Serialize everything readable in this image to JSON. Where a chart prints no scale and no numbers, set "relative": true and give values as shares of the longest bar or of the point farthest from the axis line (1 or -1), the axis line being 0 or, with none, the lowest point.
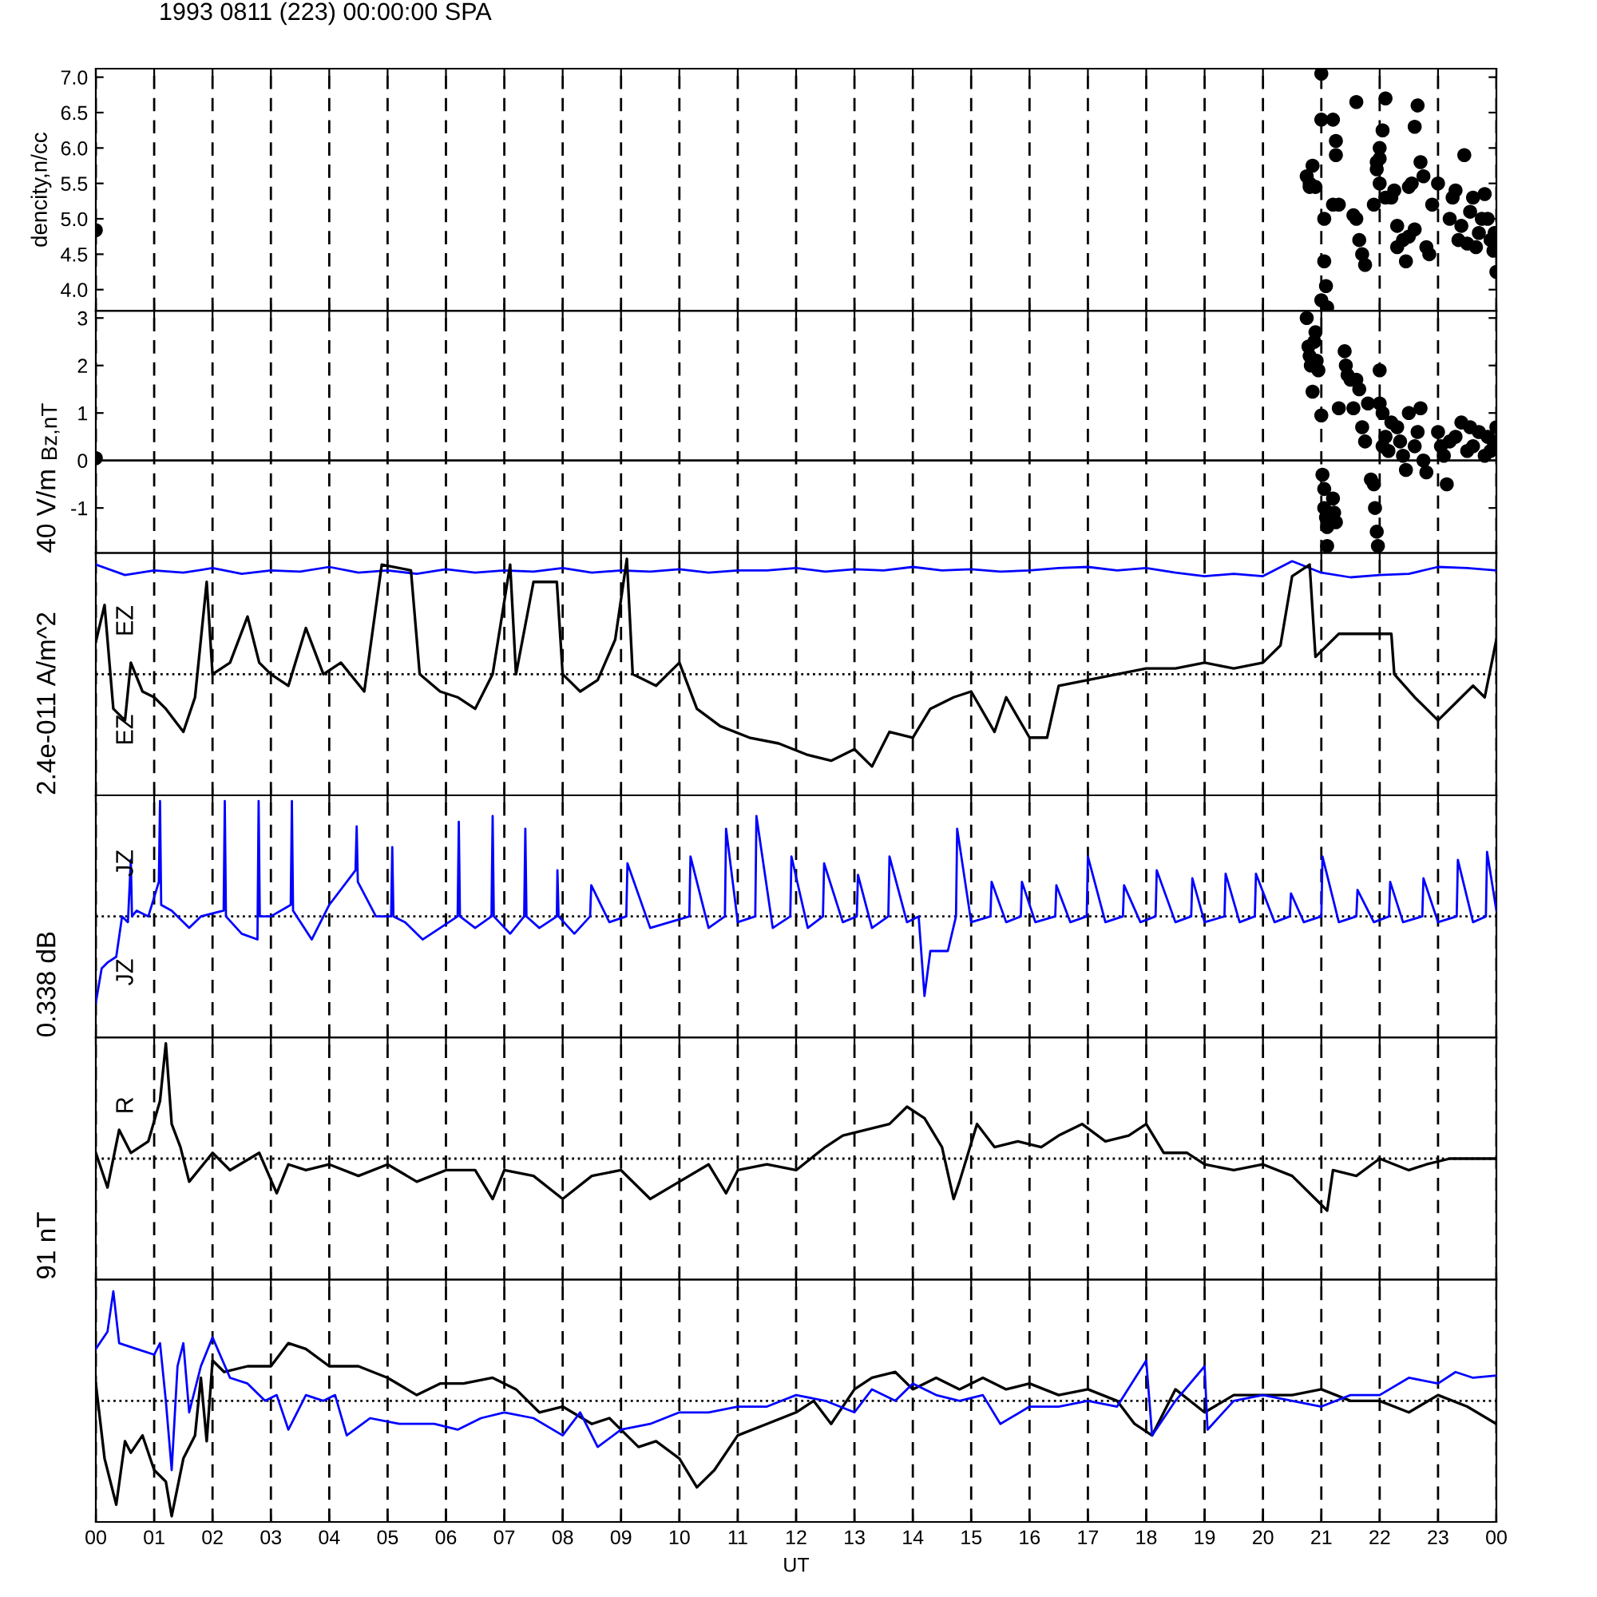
{
  "chart_data": [
    {
      "type": "scatter",
      "title": "1993 0811 (223) 00:00:00 SPA",
      "ylabel": "dencity,n/cc",
      "color": "#000000",
      "marker": "circle",
      "grid": "x",
      "tick_labels": "y",
      "xlim": [
        0,
        24
      ],
      "xticks": [
        0,
        1,
        2,
        3,
        4,
        5,
        6,
        7,
        8,
        9,
        10,
        11,
        12,
        13,
        14,
        15,
        16,
        17,
        18,
        19,
        20,
        21,
        22,
        23,
        24
      ],
      "ylim": [
        3.7,
        7.12
      ],
      "yticks": [
        {
          "value": 4,
          "label": "4.0"
        },
        {
          "value": 4.5,
          "label": "4.5"
        },
        {
          "value": 5,
          "label": "5.0"
        },
        {
          "value": 5.5,
          "label": "5.5"
        },
        {
          "value": 6,
          "label": "6.0"
        },
        {
          "value": 6.5,
          "label": "6.5"
        },
        {
          "value": 7,
          "label": "7.0"
        }
      ],
      "x": [
        0,
        20.75,
        20.8,
        20.8,
        20.85,
        20.9,
        21.0,
        21.0,
        21.05,
        21.05,
        21.08,
        21.0,
        21.1,
        21.2,
        21.25,
        21.25,
        21.2,
        21.3,
        21.6,
        21.55,
        21.6,
        21.65,
        21.7,
        21.75,
        21.9,
        21.95,
        22.0,
        22.0,
        22.05,
        22.1,
        22.0,
        22.1,
        21.95,
        22.2,
        22.25,
        22.3,
        22.3,
        22.4,
        22.45,
        22.5,
        22.55,
        22.6,
        22.65,
        22.5,
        22.6,
        22.7,
        22.75,
        22.8,
        22.85,
        22.9,
        23.0,
        23.2,
        23.25,
        23.3,
        23.35,
        23.4,
        23.45,
        23.5,
        23.55,
        23.6,
        23.65,
        23.7,
        23.75,
        23.8,
        23.85,
        23.9,
        23.95,
        24.0,
        23.97
      ],
      "values": [
        4.84,
        5.6,
        5.45,
        5.5,
        5.75,
        5.45,
        7.05,
        6.4,
        5.0,
        4.4,
        4.05,
        3.85,
        3.75,
        6.4,
        6.1,
        5.9,
        5.2,
        5.2,
        6.65,
        5.05,
        5.0,
        4.7,
        4.5,
        4.35,
        5.2,
        5.7,
        5.85,
        6.0,
        6.25,
        6.7,
        5.5,
        5.3,
        5.8,
        5.3,
        5.4,
        4.9,
        4.6,
        4.7,
        4.4,
        5.45,
        5.5,
        6.3,
        6.6,
        4.75,
        4.85,
        5.8,
        5.6,
        4.6,
        4.5,
        5.2,
        5.5,
        5.0,
        5.3,
        5.4,
        4.7,
        4.9,
        5.9,
        4.65,
        5.1,
        5.3,
        4.6,
        4.8,
        5.0,
        5.35,
        5.0,
        4.7,
        4.55,
        4.25,
        4.8
      ]
    },
    {
      "type": "scatter",
      "ylabel": "Bz,nT",
      "color": "#000000",
      "marker": "circle",
      "grid": "x",
      "tick_labels": "y",
      "xlim": [
        0,
        24
      ],
      "xticks": [
        0,
        1,
        2,
        3,
        4,
        5,
        6,
        7,
        8,
        9,
        10,
        11,
        12,
        13,
        14,
        15,
        16,
        17,
        18,
        19,
        20,
        21,
        22,
        23,
        24
      ],
      "ylim": [
        -1.95,
        3.15
      ],
      "yticks": [
        -1,
        0,
        1,
        2,
        3
      ],
      "ref_lines": [
        {
          "axis": "y",
          "value": 0,
          "color": "#000000",
          "line_style": "solid"
        }
      ],
      "x": [
        0,
        20.75,
        20.78,
        20.8,
        20.82,
        20.85,
        20.88,
        20.9,
        20.92,
        20.95,
        21.0,
        21.02,
        21.05,
        21.05,
        21.08,
        21.1,
        21.1,
        21.2,
        21.22,
        21.25,
        21.3,
        21.4,
        21.42,
        21.45,
        21.5,
        21.55,
        21.6,
        21.65,
        21.7,
        21.75,
        21.8,
        21.85,
        21.9,
        21.92,
        21.95,
        21.97,
        22.0,
        22.05,
        22.0,
        22.05,
        22.1,
        22.15,
        22.2,
        22.3,
        22.35,
        22.4,
        22.45,
        22.5,
        22.6,
        22.65,
        22.7,
        22.75,
        22.8,
        23.0,
        23.05,
        23.1,
        23.15,
        23.2,
        23.3,
        23.4,
        23.5,
        23.55,
        23.6,
        23.7,
        23.8,
        23.85,
        23.9,
        23.95,
        24.0
      ],
      "values": [
        0.05,
        3.0,
        2.4,
        2.2,
        2.0,
        1.45,
        2.5,
        2.7,
        2.1,
        1.9,
        0.95,
        -0.3,
        -0.6,
        -1.0,
        -1.2,
        -1.4,
        -1.8,
        -0.8,
        -1.1,
        -1.3,
        1.1,
        2.3,
        2.0,
        1.8,
        1.7,
        1.1,
        1.7,
        1.5,
        0.7,
        0.4,
        1.2,
        -0.4,
        -0.5,
        -1.0,
        -1.5,
        -1.8,
        1.9,
        0.3,
        1.2,
        1.0,
        0.5,
        0.2,
        0.8,
        0.7,
        0.4,
        0.1,
        -0.2,
        1.0,
        0.3,
        0.6,
        1.1,
        0.0,
        -0.25,
        0.6,
        0.3,
        0.1,
        -0.5,
        0.4,
        0.5,
        0.8,
        0.2,
        0.7,
        0.3,
        0.6,
        0.1,
        0.5,
        0.2,
        0.4,
        0.7
      ]
    },
    {
      "type": "line",
      "relative": true,
      "ylabel": "40 V/m",
      "grid": "x",
      "tick_labels": false,
      "xlim": [
        0,
        24
      ],
      "xticks": [
        0,
        1,
        2,
        3,
        4,
        5,
        6,
        7,
        8,
        9,
        10,
        11,
        12,
        13,
        14,
        15,
        16,
        17,
        18,
        19,
        20,
        21,
        22,
        23,
        24
      ],
      "ref_lines": [
        {
          "axis": "y",
          "value": 0,
          "color": "#000000",
          "line_style": "dotted"
        }
      ],
      "annotations": [
        "EZ",
        "EZ"
      ],
      "series": [
        {
          "color": "#0000ff",
          "x": [
            0,
            0.5,
            1,
            1.5,
            2,
            2.5,
            3,
            3.5,
            4,
            4.5,
            5,
            5.5,
            6,
            6.5,
            7,
            7.5,
            8,
            8.5,
            9,
            9.5,
            10,
            10.5,
            11,
            11.5,
            12,
            12.5,
            13,
            13.5,
            14,
            14.5,
            15,
            15.5,
            16,
            16.5,
            17,
            17.5,
            18,
            18.5,
            19,
            19.5,
            20,
            20.5,
            21,
            21.5,
            22,
            22.5,
            23,
            23.5,
            24
          ],
          "values": [
            0.95,
            0.86,
            0.9,
            0.88,
            0.92,
            0.87,
            0.9,
            0.89,
            0.93,
            0.88,
            0.9,
            0.87,
            0.91,
            0.88,
            0.9,
            0.89,
            0.92,
            0.88,
            0.9,
            0.89,
            0.91,
            0.88,
            0.9,
            0.9,
            0.92,
            0.89,
            0.91,
            0.9,
            0.93,
            0.9,
            0.91,
            0.89,
            0.9,
            0.92,
            0.93,
            0.9,
            0.92,
            0.88,
            0.85,
            0.87,
            0.85,
            0.98,
            0.88,
            0.84,
            0.86,
            0.87,
            0.93,
            0.92,
            0.9
          ]
        },
        {
          "color": "#000000",
          "x": [
            0,
            0.15,
            0.3,
            0.5,
            0.6,
            0.8,
            1.0,
            1.2,
            1.5,
            1.7,
            1.9,
            2.0,
            2.3,
            2.6,
            2.8,
            3.0,
            3.3,
            3.6,
            3.9,
            4.2,
            4.6,
            4.9,
            5.4,
            5.55,
            5.9,
            6.2,
            6.5,
            6.8,
            7.1,
            7.2,
            7.5,
            7.9,
            8.0,
            8.3,
            8.6,
            8.9,
            9.1,
            9.2,
            9.6,
            10.0,
            10.3,
            10.7,
            11.2,
            11.7,
            12.2,
            12.6,
            13.0,
            13.3,
            13.6,
            14.0,
            14.3,
            14.7,
            15.0,
            15.4,
            15.6,
            16.0,
            16.3,
            16.5,
            17.0,
            17.5,
            18.0,
            18.5,
            19.0,
            19.5,
            20.0,
            20.3,
            20.5,
            20.8,
            20.9,
            21.3,
            22.0,
            22.2,
            22.25,
            22.6,
            23.0,
            23.3,
            23.6,
            23.8,
            24.0
          ],
          "values": [
            0.28,
            0.6,
            -0.3,
            -0.4,
            0.1,
            -0.15,
            -0.2,
            -0.3,
            -0.5,
            -0.2,
            0.8,
            0.0,
            0.1,
            0.5,
            0.1,
            0.0,
            -0.1,
            0.4,
            0.0,
            0.1,
            -0.15,
            0.95,
            0.9,
            0.0,
            -0.15,
            -0.2,
            -0.3,
            0.0,
            0.95,
            0.0,
            0.8,
            0.8,
            0.0,
            -0.15,
            -0.05,
            0.3,
            1.0,
            0.0,
            -0.1,
            0.1,
            -0.3,
            -0.45,
            -0.55,
            -0.6,
            -0.7,
            -0.75,
            -0.65,
            -0.8,
            -0.5,
            -0.55,
            -0.3,
            -0.2,
            -0.15,
            -0.5,
            -0.2,
            -0.55,
            -0.55,
            -0.1,
            -0.05,
            0.0,
            0.05,
            0.05,
            0.1,
            0.05,
            0.1,
            0.25,
            0.85,
            0.95,
            0.15,
            0.35,
            0.35,
            0.35,
            0.0,
            -0.2,
            -0.4,
            -0.25,
            -0.1,
            -0.2,
            0.3
          ]
        }
      ]
    },
    {
      "type": "line",
      "relative": true,
      "ylabel": "2.4e-011 A/m^2",
      "grid": "x",
      "tick_labels": false,
      "xlim": [
        0,
        24
      ],
      "xticks": [
        0,
        1,
        2,
        3,
        4,
        5,
        6,
        7,
        8,
        9,
        10,
        11,
        12,
        13,
        14,
        15,
        16,
        17,
        18,
        19,
        20,
        21,
        22,
        23,
        24
      ],
      "ref_lines": [
        {
          "axis": "y",
          "value": 0,
          "color": "#000000",
          "line_style": "dotted"
        }
      ],
      "annotations": [
        "JZ",
        "JZ"
      ],
      "series": [
        {
          "color": "#0000ff",
          "x": [
            0,
            0.1,
            0.2,
            0.35,
            0.45,
            0.55,
            0.6,
            0.62,
            0.7,
            0.9,
            1.08,
            1.1,
            1.12,
            1.3,
            1.6,
            1.8,
            2.19,
            2.21,
            2.23,
            2.5,
            2.77,
            2.79,
            2.81,
            3.0,
            3.34,
            3.36,
            3.38,
            3.7,
            4.0,
            4.45,
            4.47,
            4.49,
            4.8,
            5.06,
            5.08,
            5.1,
            5.3,
            5.6,
            6.2,
            6.22,
            6.24,
            6.5,
            6.78,
            6.8,
            6.82,
            7.1,
            7.34,
            7.36,
            7.38,
            7.6,
            7.9,
            7.91,
            7.93,
            8.2,
            8.47,
            8.49,
            8.8,
            9.09,
            9.11,
            9.5,
            10.17,
            10.19,
            10.5,
            10.78,
            10.8,
            11.0,
            11.3,
            11.32,
            11.6,
            11.9,
            11.92,
            12.2,
            12.46,
            12.48,
            12.8,
            13.04,
            13.06,
            13.3,
            13.58,
            13.6,
            13.9,
            14.1,
            14.2,
            14.3,
            14.6,
            14.74,
            14.76,
            15.0,
            15.33,
            15.35,
            15.6,
            15.85,
            15.87,
            16.1,
            16.44,
            16.46,
            16.7,
            16.98,
            17.0,
            17.3,
            17.6,
            17.62,
            17.9,
            18.16,
            18.18,
            18.5,
            18.77,
            18.79,
            19.0,
            19.34,
            19.36,
            19.6,
            19.86,
            19.88,
            20.2,
            20.46,
            20.48,
            20.7,
            21.0,
            21.02,
            21.3,
            21.6,
            21.62,
            21.9,
            22.16,
            22.18,
            22.4,
            22.73,
            22.75,
            23.0,
            23.32,
            23.34,
            23.6,
            23.82,
            23.84,
            24.0
          ],
          "values": [
            -0.75,
            -0.45,
            -0.4,
            -0.35,
            0.0,
            -0.05,
            0.49,
            0.0,
            0.05,
            0.0,
            0.3,
            1.0,
            0.1,
            0.05,
            -0.1,
            0.0,
            0.05,
            1.0,
            0.0,
            -0.15,
            -0.2,
            1.0,
            0.0,
            0.0,
            0.1,
            1.0,
            0.05,
            -0.2,
            0.1,
            0.4,
            0.78,
            0.3,
            0.0,
            0.0,
            0.6,
            0.0,
            -0.05,
            -0.2,
            0.0,
            0.82,
            0.0,
            -0.1,
            0.0,
            0.87,
            0.0,
            -0.15,
            0.0,
            0.76,
            0.0,
            -0.1,
            0.0,
            0.4,
            0.0,
            -0.15,
            0.0,
            0.27,
            -0.05,
            0.0,
            0.46,
            -0.1,
            0.0,
            0.52,
            -0.1,
            0.0,
            0.76,
            -0.05,
            0.0,
            0.87,
            -0.1,
            0.0,
            0.52,
            -0.1,
            0.0,
            0.46,
            -0.05,
            0.0,
            0.36,
            -0.1,
            0.0,
            0.52,
            -0.05,
            0.0,
            -0.69,
            -0.3,
            -0.3,
            0.0,
            0.76,
            -0.05,
            0.0,
            0.3,
            -0.05,
            0.0,
            0.3,
            -0.05,
            0.0,
            0.27,
            -0.05,
            0.0,
            0.52,
            -0.05,
            0.0,
            0.27,
            -0.05,
            0.0,
            0.4,
            -0.05,
            0.0,
            0.33,
            -0.05,
            0.0,
            0.37,
            -0.05,
            0.0,
            0.37,
            -0.05,
            0.0,
            0.2,
            -0.05,
            0.0,
            0.52,
            -0.05,
            0.0,
            0.23,
            -0.05,
            0.0,
            0.3,
            -0.05,
            0.0,
            0.33,
            -0.05,
            0.0,
            0.49,
            -0.05,
            0.0,
            0.56,
            0.05
          ]
        }
      ]
    },
    {
      "type": "line",
      "relative": true,
      "ylabel": "0.338 dB",
      "grid": "x",
      "tick_labels": false,
      "xlim": [
        0,
        24
      ],
      "xticks": [
        0,
        1,
        2,
        3,
        4,
        5,
        6,
        7,
        8,
        9,
        10,
        11,
        12,
        13,
        14,
        15,
        16,
        17,
        18,
        19,
        20,
        21,
        22,
        23,
        24
      ],
      "ref_lines": [
        {
          "axis": "y",
          "value": 0,
          "color": "#000000",
          "line_style": "dotted"
        }
      ],
      "annotations": [
        "R"
      ],
      "series": [
        {
          "color": "#000000",
          "x": [
            0,
            0.2,
            0.4,
            0.6,
            0.9,
            1.1,
            1.2,
            1.3,
            1.45,
            1.6,
            2.0,
            2.3,
            2.8,
            3.1,
            3.3,
            3.6,
            4.0,
            4.5,
            5.0,
            5.5,
            6.0,
            6.5,
            6.8,
            7.0,
            7.5,
            8.0,
            8.5,
            9.0,
            9.5,
            10.0,
            10.5,
            10.8,
            11.0,
            11.5,
            12.0,
            12.5,
            12.8,
            13.2,
            13.6,
            13.9,
            14.2,
            14.5,
            14.7,
            14.8,
            15.1,
            15.4,
            15.8,
            16.2,
            16.5,
            16.9,
            17.3,
            17.7,
            18.0,
            18.3,
            18.7,
            19.0,
            19.5,
            20.0,
            20.5,
            20.9,
            21.1,
            21.2,
            21.6,
            22.0,
            22.5,
            22.8,
            23.2,
            23.6,
            24.0
          ],
          "values": [
            0.05,
            -0.25,
            0.25,
            0.05,
            0.15,
            0.5,
            1.0,
            0.3,
            0.1,
            -0.2,
            0.05,
            -0.1,
            0.05,
            -0.3,
            -0.05,
            -0.1,
            -0.05,
            -0.15,
            -0.05,
            -0.2,
            -0.1,
            -0.1,
            -0.35,
            -0.1,
            -0.15,
            -0.35,
            -0.15,
            -0.1,
            -0.35,
            -0.2,
            -0.05,
            -0.3,
            -0.1,
            -0.05,
            -0.1,
            0.1,
            0.2,
            0.25,
            0.3,
            0.45,
            0.35,
            0.1,
            -0.35,
            -0.2,
            0.3,
            0.1,
            0.15,
            0.1,
            0.2,
            0.3,
            0.15,
            0.2,
            0.3,
            0.05,
            0.05,
            -0.05,
            -0.1,
            -0.05,
            -0.15,
            -0.35,
            -0.45,
            -0.1,
            -0.15,
            0.0,
            -0.1,
            -0.05,
            0.0,
            0.0,
            0.0
          ]
        }
      ]
    },
    {
      "type": "line",
      "relative": true,
      "ylabel": "91 nT",
      "xlabel": "UT",
      "grid": "x",
      "tick_labels": "x",
      "xlim": [
        0,
        24
      ],
      "xticks": [
        {
          "value": 0,
          "label": "00"
        },
        {
          "value": 1,
          "label": "01"
        },
        {
          "value": 2,
          "label": "02"
        },
        {
          "value": 3,
          "label": "03"
        },
        {
          "value": 4,
          "label": "04"
        },
        {
          "value": 5,
          "label": "05"
        },
        {
          "value": 6,
          "label": "06"
        },
        {
          "value": 7,
          "label": "07"
        },
        {
          "value": 8,
          "label": "08"
        },
        {
          "value": 9,
          "label": "09"
        },
        {
          "value": 10,
          "label": "10"
        },
        {
          "value": 11,
          "label": "11"
        },
        {
          "value": 12,
          "label": "12"
        },
        {
          "value": 13,
          "label": "13"
        },
        {
          "value": 14,
          "label": "14"
        },
        {
          "value": 15,
          "label": "15"
        },
        {
          "value": 16,
          "label": "16"
        },
        {
          "value": 17,
          "label": "17"
        },
        {
          "value": 18,
          "label": "18"
        },
        {
          "value": 19,
          "label": "19"
        },
        {
          "value": 20,
          "label": "20"
        },
        {
          "value": 21,
          "label": "21"
        },
        {
          "value": 22,
          "label": "22"
        },
        {
          "value": 23,
          "label": "23"
        },
        {
          "value": 24,
          "label": "00"
        }
      ],
      "ref_lines": [
        {
          "axis": "y",
          "value": 0,
          "color": "#000000",
          "line_style": "dotted"
        }
      ],
      "series": [
        {
          "color": "#000000",
          "x": [
            0,
            0.15,
            0.35,
            0.5,
            0.6,
            0.8,
            1.0,
            1.2,
            1.3,
            1.5,
            1.7,
            1.8,
            1.9,
            2.0,
            2.2,
            2.6,
            3.0,
            3.3,
            3.6,
            4.0,
            4.5,
            5.0,
            5.5,
            5.9,
            6.3,
            6.8,
            7.2,
            7.6,
            8.0,
            8.5,
            8.8,
            9.3,
            9.6,
            10.0,
            10.3,
            10.6,
            11.0,
            11.5,
            12.0,
            12.3,
            12.6,
            13.0,
            13.3,
            13.7,
            14.0,
            14.4,
            14.8,
            15.2,
            15.6,
            16.0,
            16.5,
            17.0,
            17.5,
            17.8,
            18.1,
            18.5,
            19.0,
            19.5,
            20.0,
            20.5,
            21.0,
            21.5,
            22.0,
            22.5,
            23.0,
            23.5,
            24.0
          ],
          "values": [
            0.15,
            -0.5,
            -0.9,
            -0.35,
            -0.45,
            -0.3,
            -0.6,
            -0.7,
            -1.0,
            -0.5,
            -0.3,
            0.2,
            -0.35,
            0.35,
            0.25,
            0.3,
            0.3,
            0.5,
            0.45,
            0.3,
            0.3,
            0.2,
            0.05,
            0.15,
            0.15,
            0.2,
            0.1,
            -0.1,
            -0.05,
            -0.2,
            -0.15,
            -0.4,
            -0.35,
            -0.5,
            -0.75,
            -0.6,
            -0.3,
            -0.2,
            -0.1,
            0.0,
            -0.2,
            0.1,
            0.2,
            0.25,
            0.1,
            0.2,
            0.1,
            0.2,
            0.1,
            0.15,
            0.05,
            0.1,
            0.0,
            -0.2,
            -0.3,
            0.1,
            -0.1,
            0.05,
            0.05,
            0.05,
            0.1,
            0.0,
            0.0,
            -0.1,
            0.05,
            -0.05,
            -0.2
          ]
        },
        {
          "color": "#0000ff",
          "x": [
            0,
            0.2,
            0.3,
            0.4,
            0.7,
            1.0,
            1.1,
            1.2,
            1.3,
            1.4,
            1.5,
            1.6,
            1.8,
            2.0,
            2.3,
            2.6,
            2.9,
            3.1,
            3.3,
            3.6,
            3.9,
            4.1,
            4.3,
            4.7,
            5.2,
            5.8,
            6.2,
            6.6,
            7.0,
            7.5,
            8.0,
            8.3,
            8.6,
            9.0,
            9.5,
            10.0,
            10.5,
            11.0,
            11.5,
            12.0,
            12.5,
            13.0,
            13.3,
            13.7,
            14.0,
            14.4,
            14.8,
            15.2,
            15.5,
            16.0,
            16.5,
            17.0,
            17.5,
            18.0,
            18.1,
            18.5,
            19.0,
            19.05,
            19.5,
            20.0,
            20.5,
            21.0,
            21.5,
            22.0,
            22.5,
            23.0,
            23.3,
            23.6,
            24.0
          ],
          "values": [
            0.45,
            0.6,
            0.95,
            0.5,
            0.45,
            0.4,
            0.5,
            0.0,
            -0.6,
            0.3,
            0.5,
            -0.1,
            0.3,
            0.55,
            0.2,
            0.15,
            0.0,
            0.05,
            -0.25,
            0.05,
            0.0,
            0.05,
            -0.3,
            -0.15,
            -0.2,
            -0.2,
            -0.25,
            -0.15,
            -0.1,
            -0.15,
            -0.3,
            -0.1,
            -0.4,
            -0.25,
            -0.2,
            -0.1,
            -0.1,
            -0.05,
            -0.05,
            0.05,
            0.0,
            -0.1,
            0.1,
            0.0,
            0.15,
            0.05,
            0.0,
            0.05,
            -0.2,
            -0.05,
            -0.05,
            0.0,
            -0.05,
            0.35,
            -0.3,
            0.0,
            0.3,
            -0.25,
            0.0,
            0.05,
            0.0,
            -0.05,
            0.05,
            0.05,
            0.2,
            0.15,
            0.25,
            0.2,
            0.22
          ]
        }
      ]
    }
  ]
}
